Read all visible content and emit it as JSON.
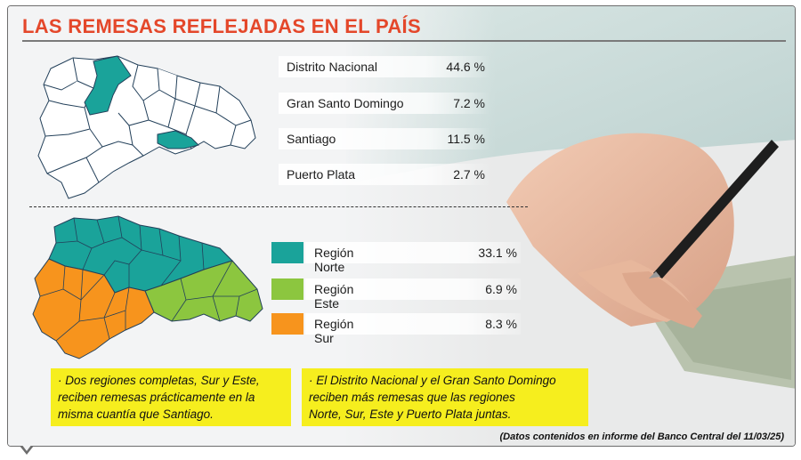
{
  "title": "LAS REMESAS REFLEJADAS EN EL PAÍS",
  "provinces": [
    {
      "name": "Distrito Nacional",
      "value": "44.6 %"
    },
    {
      "name": "Gran Santo Domingo",
      "value": "7.2 %"
    },
    {
      "name": "Santiago",
      "value": "11.5 %"
    },
    {
      "name": "Puerto Plata",
      "value": "2.7 %"
    }
  ],
  "regions": [
    {
      "name": "Región Norte",
      "value": "33.1 %",
      "color": "#1aa39a"
    },
    {
      "name": "Región Este",
      "value": "6.9 %",
      "color": "#8cc63f"
    },
    {
      "name": "Región Sur",
      "value": "8.3 %",
      "color": "#f7941d"
    }
  ],
  "notes": [
    {
      "lines": [
        "· Dos regiones completas, Sur y Este,",
        "reciben remesas prácticamente en la",
        "misma cuantía que Santiago."
      ]
    },
    {
      "lines": [
        "· El Distrito Nacional y el Gran Santo Domingo",
        "reciben más remesas que las regiones",
        "Norte, Sur, Este y Puerto Plata juntas."
      ]
    }
  ],
  "source": "(Datos contenidos en informe del Banco Central del 11/03/25)",
  "colors": {
    "title": "#e4472a",
    "highlight": "#1aa39a",
    "note_bg": "#f6ee1e"
  }
}
